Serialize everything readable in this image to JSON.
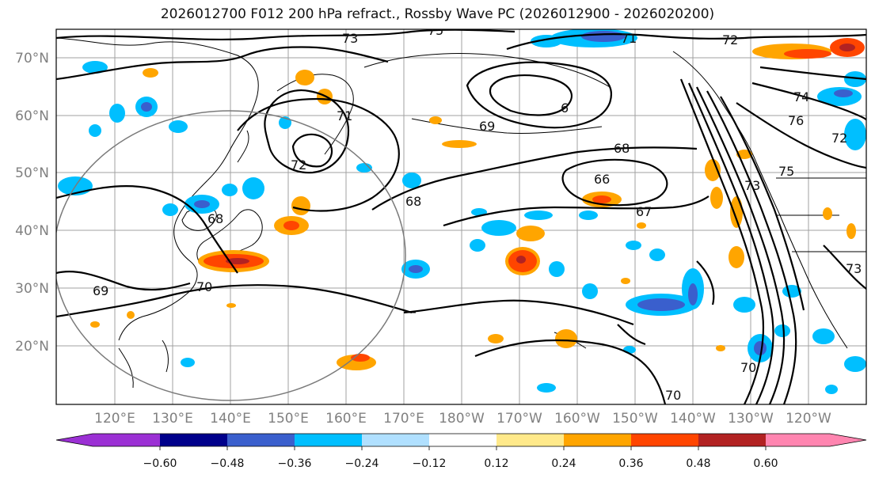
{
  "title": "2026012700 F012 200 hPa refract., Rossby Wave PC (2026012900 - 2026020200)",
  "lat_labels": [
    "70°N",
    "60°N",
    "50°N",
    "40°N",
    "30°N",
    "20°N"
  ],
  "lon_labels": [
    "120°E",
    "130°E",
    "140°E",
    "150°E",
    "160°E",
    "170°E",
    "180°W",
    "170°W",
    "160°W",
    "150°W",
    "140°W",
    "130°W",
    "120°W"
  ],
  "contour_labels": [
    "73",
    "75",
    "71",
    "72",
    "74",
    "76",
    "72",
    "75",
    "73",
    "71",
    "72",
    "69",
    "68",
    "66",
    "67",
    "68",
    "68",
    "69",
    "70",
    "70",
    "70",
    "73",
    "6"
  ],
  "colorbar": {
    "tick_labels": [
      "−0.60",
      "−0.48",
      "−0.36",
      "−0.24",
      "−0.12",
      "0.12",
      "0.24",
      "0.36",
      "0.48",
      "0.60"
    ],
    "colors": [
      "#9b30d4",
      "#00008b",
      "#3a5fcd",
      "#00bfff",
      "#b0e0ff",
      "#ffffff",
      "#ffe98a",
      "#ffa500",
      "#ff4500",
      "#b22222",
      "#ff85b0"
    ]
  }
}
